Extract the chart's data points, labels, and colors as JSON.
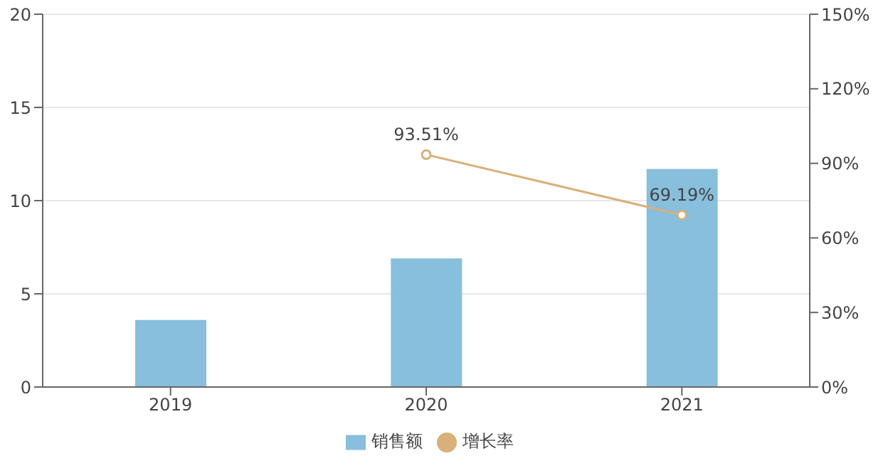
{
  "chart_data": {
    "type": "bar",
    "categories": [
      "2019",
      "2020",
      "2021"
    ],
    "series": [
      {
        "name": "销售额",
        "color": "#87bfdc",
        "values": [
          3.6,
          6.9,
          11.7
        ]
      },
      {
        "name": "增长率",
        "type": "line",
        "axis": "y2",
        "color": "#d9b07a",
        "values": [
          null,
          93.51,
          69.19
        ],
        "value_labels": [
          null,
          "93.51%",
          "69.19%"
        ]
      }
    ],
    "ylim": [
      0,
      20
    ],
    "yticks": [
      0,
      5,
      10,
      15,
      20
    ],
    "y2lim": [
      0,
      150
    ],
    "y2ticks": [
      {
        "value": 0,
        "label": "0%"
      },
      {
        "value": 30,
        "label": "30%"
      },
      {
        "value": 60,
        "label": "60%"
      },
      {
        "value": 90,
        "label": "90%"
      },
      {
        "value": 120,
        "label": "120%"
      },
      {
        "value": 150,
        "label": "150%"
      }
    ],
    "grid": "y",
    "legend": "bottom",
    "marker": "circle",
    "line_style": "solid"
  }
}
